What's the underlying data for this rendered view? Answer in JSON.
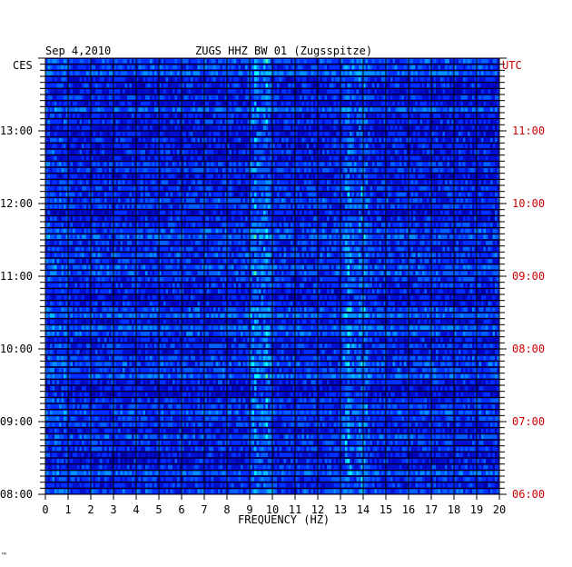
{
  "chart_data": {
    "type": "heatmap",
    "title_date": "Sep 4,2010",
    "title_station": "ZUGS HHZ BW 01 (Zugsspitze)",
    "xlabel": "FREQUENCY (HZ)",
    "left_tz": "CES",
    "right_tz": "UTC",
    "x_ticks": [
      "0",
      "1",
      "2",
      "3",
      "4",
      "5",
      "6",
      "7",
      "8",
      "9",
      "10",
      "11",
      "12",
      "13",
      "14",
      "15",
      "16",
      "17",
      "18",
      "19",
      "20"
    ],
    "xlim": [
      0,
      20
    ],
    "left_time_labels": [
      "13:00",
      "12:00",
      "11:00",
      "10:00",
      "09:00",
      "08:00"
    ],
    "right_time_labels": [
      "11:00",
      "10:00",
      "09:00",
      "08:00",
      "07:00",
      "06:00"
    ],
    "time_range_ces": [
      "08:00",
      "14:00"
    ],
    "colors": {
      "background": "#0000c8",
      "ces_text": "#000000",
      "utc_text": "#cc0000",
      "grid": "#000000"
    },
    "prominent_bands_hz": [
      9.2,
      9.7,
      13.3,
      13.9
    ]
  },
  "footer_mark": "™"
}
